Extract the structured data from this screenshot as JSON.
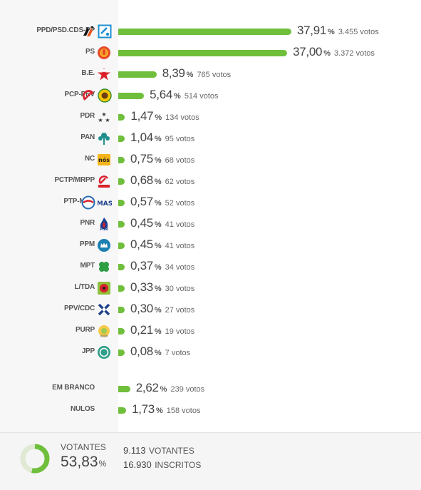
{
  "chart_data": {
    "type": "bar",
    "orientation": "horizontal",
    "value_unit": "%",
    "votes_unit": "votos",
    "max_value": 37.91,
    "parties": [
      {
        "name": "PPD/PSD.CDS-PP",
        "pct": "37,91",
        "value": 37.91,
        "votes": "3.455",
        "logos": [
          "psd-arrows-icon",
          "cds-pp-icon"
        ]
      },
      {
        "name": "PS",
        "pct": "37,00",
        "value": 37.0,
        "votes": "3.372",
        "logos": [
          "ps-fist-icon"
        ]
      },
      {
        "name": "B.E.",
        "pct": "8,39",
        "value": 8.39,
        "votes": "765",
        "logos": [
          "be-star-icon"
        ]
      },
      {
        "name": "PCP-PEV",
        "pct": "5,64",
        "value": 5.64,
        "votes": "514",
        "logos": [
          "pcp-hammer-sickle-icon",
          "pev-sunflower-icon"
        ]
      },
      {
        "name": "PDR",
        "pct": "1,47",
        "value": 1.47,
        "votes": "134",
        "logos": [
          "pdr-stars-icon"
        ]
      },
      {
        "name": "PAN",
        "pct": "1,04",
        "value": 1.04,
        "votes": "95",
        "logos": [
          "pan-tree-icon"
        ]
      },
      {
        "name": "NC",
        "pct": "0,75",
        "value": 0.75,
        "votes": "68",
        "logos": [
          "nc-nos-icon"
        ]
      },
      {
        "name": "PCTP/MRPP",
        "pct": "0,68",
        "value": 0.68,
        "votes": "62",
        "logos": [
          "pctp-hammer-sickle-icon"
        ]
      },
      {
        "name": "PTP-MAS",
        "pct": "0,57",
        "value": 0.57,
        "votes": "52",
        "logos": [
          "ptp-circle-icon",
          "mas-text-icon"
        ]
      },
      {
        "name": "PNR",
        "pct": "0,45",
        "value": 0.45,
        "votes": "41",
        "logos": [
          "pnr-flame-icon"
        ]
      },
      {
        "name": "PPM",
        "pct": "0,45",
        "value": 0.45,
        "votes": "41",
        "logos": [
          "ppm-crown-icon"
        ]
      },
      {
        "name": "MPT",
        "pct": "0,37",
        "value": 0.37,
        "votes": "34",
        "logos": [
          "mpt-clover-icon"
        ]
      },
      {
        "name": "L/TDA",
        "pct": "0,33",
        "value": 0.33,
        "votes": "30",
        "logos": [
          "livre-poppy-icon"
        ]
      },
      {
        "name": "PPV/CDC",
        "pct": "0,30",
        "value": 0.3,
        "votes": "27",
        "logos": [
          "ppv-x-icon"
        ]
      },
      {
        "name": "PURP",
        "pct": "0,21",
        "value": 0.21,
        "votes": "19",
        "logos": [
          "purp-sun-icon"
        ]
      },
      {
        "name": "JPP",
        "pct": "0,08",
        "value": 0.08,
        "votes": "7",
        "logos": [
          "jpp-circle-icon"
        ]
      }
    ],
    "others": [
      {
        "name": "EM BRANCO",
        "pct": "2,62",
        "value": 2.62,
        "votes": "239"
      },
      {
        "name": "NULOS",
        "pct": "1,73",
        "value": 1.73,
        "votes": "158"
      }
    ]
  },
  "summary": {
    "label": "VOTANTES",
    "turnout_pct": "53,83",
    "turnout_value": 53.83,
    "pct_sign": "%",
    "voters": "9.113",
    "voters_label": "VOTANTES",
    "registered": "16.930",
    "registered_label": "INSCRITOS"
  },
  "colors": {
    "bar": "#6fbf3c",
    "donut_track": "#dfe9d3",
    "donut_fill": "#6fbf3c"
  }
}
